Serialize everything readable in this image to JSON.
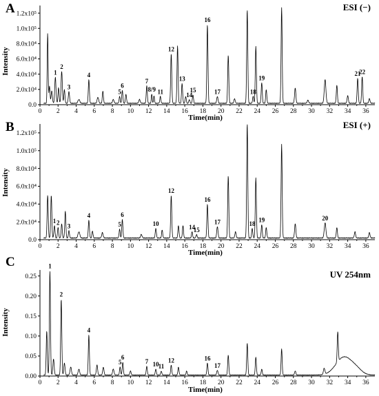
{
  "chart_data": [
    {
      "type": "line",
      "panel": "A",
      "mode_label": "ESI (−)",
      "xlabel": "Time(min)",
      "ylabel": "Intensity",
      "xlim": [
        0,
        37
      ],
      "ylim": [
        0,
        130000
      ],
      "x_ticks": [
        0,
        2,
        4,
        6,
        8,
        10,
        12,
        14,
        16,
        18,
        20,
        22,
        24,
        26,
        28,
        30,
        32,
        34,
        36
      ],
      "y_ticks": [
        {
          "value": 0,
          "label": "0.0"
        },
        {
          "value": 20000,
          "label": "2.0x10⁴"
        },
        {
          "value": 40000,
          "label": "4.0x10⁴"
        },
        {
          "value": 60000,
          "label": "6.0x10⁴"
        },
        {
          "value": 80000,
          "label": "8.0x10⁴"
        },
        {
          "value": 100000,
          "label": "1.0x10⁵"
        },
        {
          "value": 120000,
          "label": "1.2x10⁵"
        }
      ],
      "baseline": 1500,
      "peaks": [
        {
          "x": 0.85,
          "y": 92000,
          "w": 0.05
        },
        {
          "x": 1.05,
          "y": 22000,
          "w": 0.06
        },
        {
          "x": 1.3,
          "y": 16000,
          "w": 0.07
        },
        {
          "x": 1.7,
          "y": 34000,
          "w": 0.07,
          "label": "1"
        },
        {
          "x": 2.05,
          "y": 20000,
          "w": 0.06
        },
        {
          "x": 2.4,
          "y": 42000,
          "w": 0.07,
          "label": "2"
        },
        {
          "x": 2.7,
          "y": 18000,
          "w": 0.06
        },
        {
          "x": 3.2,
          "y": 15000,
          "w": 0.07,
          "label": "3"
        },
        {
          "x": 4.3,
          "y": 5000,
          "w": 0.1
        },
        {
          "x": 5.4,
          "y": 31000,
          "w": 0.06,
          "label": "4"
        },
        {
          "x": 6.4,
          "y": 8000,
          "w": 0.08
        },
        {
          "x": 6.95,
          "y": 16000,
          "w": 0.06
        },
        {
          "x": 8.1,
          "y": 5000,
          "w": 0.08
        },
        {
          "x": 8.8,
          "y": 9000,
          "w": 0.06,
          "label": "5"
        },
        {
          "x": 9.1,
          "y": 17000,
          "w": 0.06,
          "label": "6"
        },
        {
          "x": 9.5,
          "y": 12000,
          "w": 0.06
        },
        {
          "x": 11.0,
          "y": 5000,
          "w": 0.08
        },
        {
          "x": 11.8,
          "y": 23000,
          "w": 0.06,
          "label": "7"
        },
        {
          "x": 12.35,
          "y": 12000,
          "w": 0.05,
          "label": "8/9"
        },
        {
          "x": 12.6,
          "y": 10000,
          "w": 0.05
        },
        {
          "x": 13.3,
          "y": 9000,
          "w": 0.06,
          "label": "11"
        },
        {
          "x": 14.5,
          "y": 65000,
          "w": 0.06,
          "label": "12"
        },
        {
          "x": 15.2,
          "y": 75000,
          "w": 0.06
        },
        {
          "x": 15.7,
          "y": 26000,
          "w": 0.06,
          "label": "13"
        },
        {
          "x": 16.1,
          "y": 9000,
          "w": 0.06
        },
        {
          "x": 16.5,
          "y": 5000,
          "w": 0.06,
          "label": "14"
        },
        {
          "x": 16.9,
          "y": 11000,
          "w": 0.06,
          "label": "15"
        },
        {
          "x": 18.5,
          "y": 103000,
          "w": 0.06,
          "label": "16"
        },
        {
          "x": 19.6,
          "y": 9000,
          "w": 0.07,
          "label": "17"
        },
        {
          "x": 20.8,
          "y": 63000,
          "w": 0.06
        },
        {
          "x": 21.5,
          "y": 6000,
          "w": 0.07
        },
        {
          "x": 22.9,
          "y": 123000,
          "w": 0.06
        },
        {
          "x": 23.55,
          "y": 9000,
          "w": 0.06,
          "label": "18"
        },
        {
          "x": 23.85,
          "y": 75000,
          "w": 0.06
        },
        {
          "x": 24.5,
          "y": 27000,
          "w": 0.06,
          "label": "19"
        },
        {
          "x": 25.0,
          "y": 18000,
          "w": 0.06
        },
        {
          "x": 26.7,
          "y": 125000,
          "w": 0.06
        },
        {
          "x": 28.2,
          "y": 20000,
          "w": 0.07
        },
        {
          "x": 29.6,
          "y": 4000,
          "w": 0.08
        },
        {
          "x": 31.5,
          "y": 31000,
          "w": 0.09
        },
        {
          "x": 32.8,
          "y": 24000,
          "w": 0.06
        },
        {
          "x": 34.0,
          "y": 10000,
          "w": 0.07
        },
        {
          "x": 35.1,
          "y": 33000,
          "w": 0.06,
          "label": "21"
        },
        {
          "x": 35.6,
          "y": 35000,
          "w": 0.06,
          "label": "22"
        },
        {
          "x": 36.4,
          "y": 6000,
          "w": 0.07
        }
      ]
    },
    {
      "type": "line",
      "panel": "B",
      "mode_label": "ESI (+)",
      "xlabel": "Time(min)",
      "ylabel": "Intensity",
      "xlim": [
        0,
        37
      ],
      "ylim": [
        0,
        130000
      ],
      "x_ticks": [
        0,
        2,
        4,
        6,
        8,
        10,
        12,
        14,
        16,
        18,
        20,
        22,
        24,
        26,
        28,
        30,
        32,
        34,
        36
      ],
      "y_ticks": [
        {
          "value": 0,
          "label": "0.0"
        },
        {
          "value": 20000,
          "label": "2.0x10⁴"
        },
        {
          "value": 40000,
          "label": "4.0x10⁴"
        },
        {
          "value": 60000,
          "label": "6.0x10⁴"
        },
        {
          "value": 80000,
          "label": "8.0x10⁴"
        },
        {
          "value": 100000,
          "label": "1.0x10⁵"
        },
        {
          "value": 120000,
          "label": "1.2x10⁵"
        }
      ],
      "baseline": 1500,
      "peaks": [
        {
          "x": 0.85,
          "y": 48000,
          "w": 0.06
        },
        {
          "x": 1.25,
          "y": 48000,
          "w": 0.06
        },
        {
          "x": 1.6,
          "y": 14000,
          "w": 0.06,
          "label": "1"
        },
        {
          "x": 2.0,
          "y": 12000,
          "w": 0.06,
          "label": "2"
        },
        {
          "x": 2.4,
          "y": 16000,
          "w": 0.06
        },
        {
          "x": 2.8,
          "y": 30000,
          "w": 0.06
        },
        {
          "x": 3.2,
          "y": 8000,
          "w": 0.06,
          "label": "3"
        },
        {
          "x": 4.3,
          "y": 7000,
          "w": 0.1
        },
        {
          "x": 5.4,
          "y": 20000,
          "w": 0.06,
          "label": "4"
        },
        {
          "x": 5.8,
          "y": 8000,
          "w": 0.06
        },
        {
          "x": 6.9,
          "y": 6000,
          "w": 0.08
        },
        {
          "x": 8.8,
          "y": 10000,
          "w": 0.06,
          "label": "5"
        },
        {
          "x": 9.1,
          "y": 21000,
          "w": 0.06,
          "label": "6"
        },
        {
          "x": 11.2,
          "y": 4000,
          "w": 0.08
        },
        {
          "x": 12.8,
          "y": 11000,
          "w": 0.06,
          "label": "10"
        },
        {
          "x": 13.5,
          "y": 9000,
          "w": 0.06
        },
        {
          "x": 14.5,
          "y": 48000,
          "w": 0.06,
          "label": "12"
        },
        {
          "x": 15.3,
          "y": 14000,
          "w": 0.06
        },
        {
          "x": 15.8,
          "y": 14000,
          "w": 0.06
        },
        {
          "x": 16.8,
          "y": 7000,
          "w": 0.06,
          "label": "14"
        },
        {
          "x": 17.3,
          "y": 4000,
          "w": 0.06,
          "label": "15"
        },
        {
          "x": 18.5,
          "y": 38000,
          "w": 0.06,
          "label": "16"
        },
        {
          "x": 19.6,
          "y": 13000,
          "w": 0.07,
          "label": "17"
        },
        {
          "x": 20.8,
          "y": 70000,
          "w": 0.06
        },
        {
          "x": 21.6,
          "y": 7000,
          "w": 0.07
        },
        {
          "x": 22.9,
          "y": 129000,
          "w": 0.06
        },
        {
          "x": 23.45,
          "y": 11000,
          "w": 0.06,
          "label": "18"
        },
        {
          "x": 23.85,
          "y": 68000,
          "w": 0.06
        },
        {
          "x": 24.5,
          "y": 15000,
          "w": 0.06,
          "label": "19"
        },
        {
          "x": 25.0,
          "y": 12000,
          "w": 0.06
        },
        {
          "x": 26.7,
          "y": 105000,
          "w": 0.06
        },
        {
          "x": 28.2,
          "y": 16000,
          "w": 0.07
        },
        {
          "x": 31.5,
          "y": 17000,
          "w": 0.09,
          "label": "20"
        },
        {
          "x": 32.8,
          "y": 12000,
          "w": 0.06
        },
        {
          "x": 34.8,
          "y": 7000,
          "w": 0.07
        },
        {
          "x": 36.4,
          "y": 6000,
          "w": 0.07
        }
      ]
    },
    {
      "type": "line",
      "panel": "C",
      "mode_label": "UV 254nm",
      "xlabel": "Time(min)",
      "ylabel": "Intensity",
      "xlim": [
        0,
        37
      ],
      "ylim": [
        0,
        0.265
      ],
      "x_ticks": [
        0,
        2,
        4,
        6,
        8,
        10,
        12,
        14,
        16,
        18,
        20,
        22,
        24,
        26,
        28,
        30,
        32,
        34,
        36
      ],
      "y_ticks": [
        {
          "value": 0,
          "label": "0.00"
        },
        {
          "value": 0.05,
          "label": "0.05"
        },
        {
          "value": 0.1,
          "label": "0.10"
        },
        {
          "value": 0.15,
          "label": "0.15"
        },
        {
          "value": 0.2,
          "label": "0.20"
        },
        {
          "value": 0.25,
          "label": "0.25"
        }
      ],
      "baseline": 0.002,
      "peaks": [
        {
          "x": 0.75,
          "y": 0.11,
          "w": 0.06
        },
        {
          "x": 1.1,
          "y": 0.26,
          "w": 0.06,
          "label": "1"
        },
        {
          "x": 1.5,
          "y": 0.04,
          "w": 0.07
        },
        {
          "x": 2.35,
          "y": 0.19,
          "w": 0.06,
          "label": "2"
        },
        {
          "x": 2.7,
          "y": 0.03,
          "w": 0.07
        },
        {
          "x": 3.4,
          "y": 0.02,
          "w": 0.08
        },
        {
          "x": 4.3,
          "y": 0.015,
          "w": 0.08
        },
        {
          "x": 5.4,
          "y": 0.1,
          "w": 0.06,
          "label": "4"
        },
        {
          "x": 6.3,
          "y": 0.025,
          "w": 0.07
        },
        {
          "x": 7.0,
          "y": 0.02,
          "w": 0.07
        },
        {
          "x": 8.1,
          "y": 0.015,
          "w": 0.08
        },
        {
          "x": 8.85,
          "y": 0.02,
          "w": 0.06,
          "label": "5"
        },
        {
          "x": 9.15,
          "y": 0.032,
          "w": 0.06,
          "label": "6"
        },
        {
          "x": 10.0,
          "y": 0.01,
          "w": 0.07
        },
        {
          "x": 11.8,
          "y": 0.022,
          "w": 0.06,
          "label": "7"
        },
        {
          "x": 12.8,
          "y": 0.015,
          "w": 0.06,
          "label": "10"
        },
        {
          "x": 13.4,
          "y": 0.01,
          "w": 0.06,
          "label": "11"
        },
        {
          "x": 14.5,
          "y": 0.025,
          "w": 0.06,
          "label": "12"
        },
        {
          "x": 15.3,
          "y": 0.02,
          "w": 0.06
        },
        {
          "x": 16.2,
          "y": 0.01,
          "w": 0.06
        },
        {
          "x": 18.5,
          "y": 0.03,
          "w": 0.06,
          "label": "16"
        },
        {
          "x": 19.6,
          "y": 0.012,
          "w": 0.07,
          "label": "17"
        },
        {
          "x": 20.8,
          "y": 0.05,
          "w": 0.06
        },
        {
          "x": 22.9,
          "y": 0.08,
          "w": 0.06
        },
        {
          "x": 23.85,
          "y": 0.045,
          "w": 0.06
        },
        {
          "x": 24.5,
          "y": 0.015,
          "w": 0.06
        },
        {
          "x": 26.7,
          "y": 0.065,
          "w": 0.06
        },
        {
          "x": 28.2,
          "y": 0.01,
          "w": 0.07
        },
        {
          "x": 31.4,
          "y": 0.015,
          "w": 0.08
        },
        {
          "x": 32.9,
          "y": 0.075,
          "w": 0.06
        },
        {
          "x": 33.6,
          "y": 0.045,
          "w": 0.9
        },
        {
          "x": 35.0,
          "y": 0.01,
          "w": 0.6
        }
      ]
    }
  ]
}
